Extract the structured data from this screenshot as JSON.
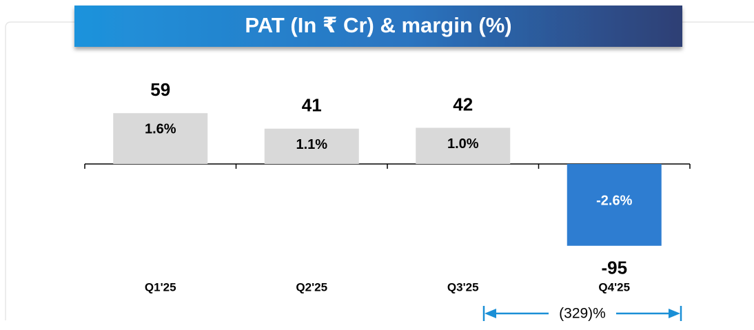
{
  "chart_data": {
    "type": "bar",
    "title": "PAT (In ₹ Cr) & margin (%)",
    "categories": [
      "Q1'25",
      "Q2'25",
      "Q3'25",
      "Q4'25"
    ],
    "values": [
      59,
      41,
      42,
      -95
    ],
    "margin_labels": [
      "1.6%",
      "1.1%",
      "1.0%",
      "-2.6%"
    ],
    "positive_color": "#d9d9d9",
    "negative_color": "#2e7dd1",
    "annotation": "(329)%"
  }
}
